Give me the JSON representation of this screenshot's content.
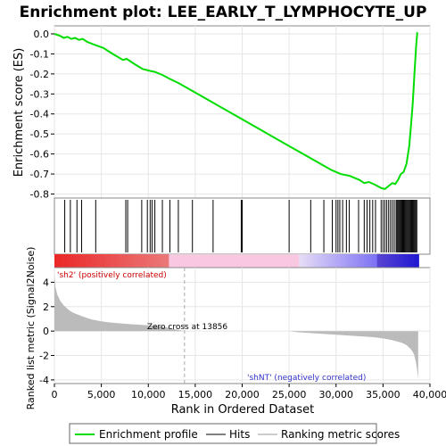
{
  "chart_data": {
    "type": "line",
    "title": "Enrichment plot: LEE_EARLY_T_LYMPHOCYTE_UP",
    "xlabel": "Rank in Ordered Dataset",
    "ylabel_top": "Enrichment score (ES)",
    "ylabel_bottom": "Ranked list metric (Signal2Noise)",
    "xlim": [
      0,
      40000
    ],
    "x_ticks": [
      0,
      5000,
      10000,
      15000,
      20000,
      25000,
      30000,
      35000,
      40000
    ],
    "x_tick_labels": [
      "0",
      "5,000",
      "10,000",
      "15,000",
      "20,000",
      "25,000",
      "30,000",
      "35,000",
      "40,000"
    ],
    "es_ylim": [
      -0.82,
      0.04
    ],
    "es_ticks": [
      0.0,
      -0.1,
      -0.2,
      -0.3,
      -0.4,
      -0.5,
      -0.6,
      -0.7,
      -0.8
    ],
    "es_tick_labels": [
      "0.0",
      "-0.1",
      "-0.2",
      "-0.3",
      "-0.4",
      "-0.5",
      "-0.6",
      "-0.7",
      "-0.8"
    ],
    "metric_ylim": [
      -4.3,
      5.2
    ],
    "metric_ticks": [
      4,
      2,
      0,
      -2,
      -4
    ],
    "metric_tick_labels": [
      "4",
      "2",
      "0",
      "-2",
      "-4"
    ],
    "series": [
      {
        "name": "Enrichment profile",
        "color": "#00dd00",
        "x": [
          0,
          600,
          1000,
          1400,
          1800,
          2200,
          2600,
          3000,
          3500,
          4300,
          5200,
          6200,
          7300,
          7700,
          8500,
          9400,
          10200,
          10700,
          11500,
          12300,
          13200,
          14500,
          16000,
          17500,
          19000,
          20500,
          22000,
          23500,
          25000,
          26500,
          28000,
          29500,
          30500,
          31500,
          32500,
          33000,
          33500,
          34200,
          34800,
          35200,
          35600,
          36000,
          36300,
          36600,
          36900,
          37200,
          37500,
          37800,
          38000,
          38150,
          38250,
          38350,
          38450,
          38550,
          38650,
          38700
        ],
        "values": [
          0.0,
          -0.01,
          -0.02,
          -0.015,
          -0.025,
          -0.02,
          -0.03,
          -0.025,
          -0.04,
          -0.055,
          -0.07,
          -0.1,
          -0.13,
          -0.125,
          -0.15,
          -0.175,
          -0.185,
          -0.19,
          -0.205,
          -0.225,
          -0.245,
          -0.28,
          -0.32,
          -0.36,
          -0.4,
          -0.44,
          -0.48,
          -0.52,
          -0.56,
          -0.6,
          -0.64,
          -0.68,
          -0.7,
          -0.71,
          -0.73,
          -0.745,
          -0.74,
          -0.755,
          -0.77,
          -0.775,
          -0.76,
          -0.745,
          -0.75,
          -0.73,
          -0.7,
          -0.69,
          -0.65,
          -0.56,
          -0.45,
          -0.36,
          -0.28,
          -0.2,
          -0.12,
          -0.05,
          0.005,
          0.005
        ]
      }
    ],
    "hits_x": [
      1100,
      1700,
      2400,
      2900,
      4400,
      7600,
      7800,
      9300,
      9900,
      10200,
      10400,
      10700,
      11500,
      12300,
      13200,
      14700,
      16900,
      19900,
      20000,
      25000,
      27300,
      28700,
      29600,
      30000,
      30200,
      30400,
      30700,
      31100,
      31400,
      32400,
      33000,
      33300,
      33600,
      33900,
      34200,
      34800,
      35000,
      35200,
      35400,
      35600,
      35800,
      36000,
      36200,
      36400,
      36500,
      36600,
      36700,
      36800,
      36900,
      37000,
      37100,
      37200,
      37300,
      37400,
      37500,
      37600,
      37700,
      37800,
      37900,
      38000,
      38100,
      38200,
      38300,
      38400,
      38500,
      38600
    ],
    "metric_x": [
      0,
      100,
      300,
      600,
      1000,
      1500,
      2000,
      3000,
      4000,
      5000,
      6000,
      7000,
      8000,
      9000,
      10000,
      11000,
      12000,
      13000,
      13856,
      15000,
      20000,
      25000,
      26000,
      28000,
      30000,
      32000,
      34000,
      35000,
      36000,
      37000,
      37500,
      38000,
      38300,
      38500,
      38650,
      38750
    ],
    "metric_values": [
      4.7,
      3.6,
      3.0,
      2.5,
      2.1,
      1.75,
      1.5,
      1.2,
      0.95,
      0.8,
      0.7,
      0.63,
      0.57,
      0.52,
      0.47,
      0.42,
      0.3,
      0.12,
      0.0,
      0.0,
      0.0,
      0.0,
      -0.1,
      -0.2,
      -0.3,
      -0.4,
      -0.5,
      -0.6,
      -0.75,
      -0.95,
      -1.15,
      -1.5,
      -1.9,
      -2.5,
      -3.3,
      -3.9
    ],
    "annotations": {
      "pos_label": "'sh2' (positively correlated)",
      "neg_label": "'shNT' (negatively correlated)",
      "zero_cross_label": "Zero cross at 13856",
      "zero_cross_x": 13856
    },
    "legend": [
      {
        "label": "Enrichment profile",
        "color": "#00dd00"
      },
      {
        "label": "Hits",
        "color": "#000000"
      },
      {
        "label": "Ranking metric scores",
        "color": "#cccccc"
      }
    ],
    "legend_position": "bottom"
  }
}
